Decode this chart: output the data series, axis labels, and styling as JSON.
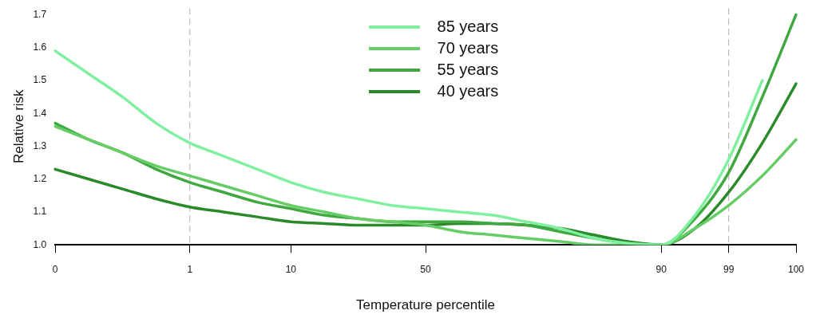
{
  "chart_data": {
    "type": "line",
    "xlabel": "Temperature percentile",
    "ylabel": "Relative risk",
    "categories": [
      "0",
      null,
      null,
      null,
      "1",
      null,
      null,
      "10",
      null,
      null,
      null,
      "50",
      null,
      null,
      null,
      null,
      null,
      null,
      "90",
      null,
      "99",
      null,
      "100"
    ],
    "series": [
      {
        "name": "85 years",
        "color": "#80f0a0",
        "values": [
          1.59,
          1.52,
          1.45,
          1.37,
          1.31,
          1.27,
          1.23,
          1.19,
          1.16,
          1.14,
          1.12,
          1.11,
          1.1,
          1.09,
          1.07,
          1.05,
          1.02,
          1.005,
          1.0,
          1.09,
          1.26,
          1.5,
          null
        ]
      },
      {
        "name": "70 years",
        "color": "#66cc66",
        "values": [
          1.36,
          1.32,
          1.28,
          1.24,
          1.21,
          1.18,
          1.15,
          1.12,
          1.1,
          1.08,
          1.07,
          1.06,
          1.04,
          1.03,
          1.02,
          1.01,
          1.0,
          1.0,
          1.0,
          1.05,
          1.12,
          1.21,
          1.32
        ]
      },
      {
        "name": "55 years",
        "color": "#40a840",
        "values": [
          1.37,
          1.32,
          1.28,
          1.23,
          1.19,
          1.16,
          1.13,
          1.11,
          1.09,
          1.08,
          1.07,
          1.07,
          1.07,
          1.065,
          1.06,
          1.04,
          1.02,
          1.005,
          1.0,
          1.08,
          1.22,
          1.45,
          1.7
        ]
      },
      {
        "name": "40 years",
        "color": "#2a8a2a",
        "values": [
          1.23,
          1.2,
          1.17,
          1.14,
          1.115,
          1.1,
          1.085,
          1.07,
          1.065,
          1.06,
          1.06,
          1.06,
          1.065,
          1.065,
          1.06,
          1.05,
          1.03,
          1.01,
          1.0,
          1.05,
          1.16,
          1.31,
          1.49
        ]
      }
    ],
    "ylim": [
      1.0,
      1.72
    ],
    "yticks": [
      {
        "value": 1.0,
        "label": "1.0"
      },
      1.1,
      1.2,
      1.3,
      1.4,
      1.5,
      1.6,
      1.7
    ],
    "ref_lines": [
      {
        "axis": "x",
        "value": "1",
        "color": "#b0b0b0",
        "line_style": "dashed"
      },
      {
        "axis": "x",
        "value": "99",
        "color": "#b0b0b0",
        "line_style": "dashed"
      }
    ],
    "grid": false,
    "legend": "top",
    "marker": "none",
    "line_style": "solid"
  }
}
